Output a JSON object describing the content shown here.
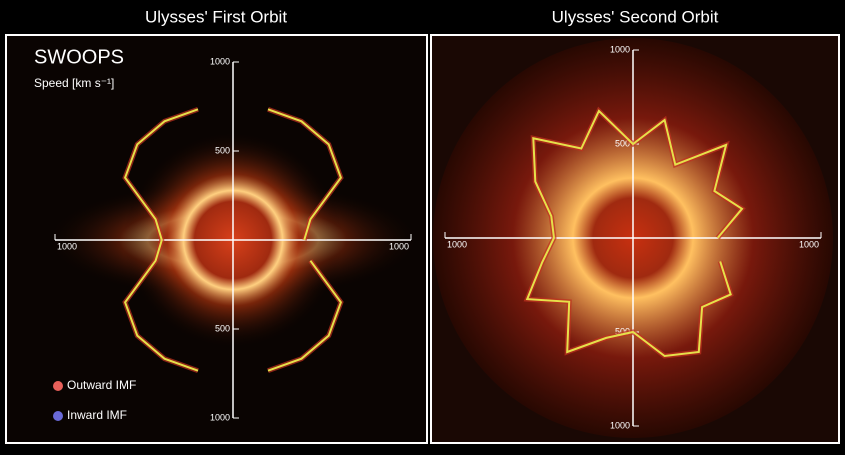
{
  "chart_data": [
    {
      "type": "polar",
      "title": "Ulysses' First Orbit",
      "annotation": "SWOOPS",
      "axis_label": "Speed [km s⁻¹]",
      "rlim": [
        0,
        1000
      ],
      "rticks": [
        500,
        1000
      ],
      "theta": [
        0,
        15,
        30,
        45,
        60,
        75,
        90,
        105,
        120,
        135,
        150,
        165,
        180,
        195,
        210,
        225,
        240,
        255,
        270,
        285,
        300,
        315,
        330,
        345
      ],
      "series": [
        {
          "color": "#e6e04a",
          "values": [
            400,
            450,
            700,
            760,
            770,
            760,
            null,
            760,
            770,
            760,
            700,
            450,
            400,
            450,
            700,
            760,
            770,
            760,
            null,
            760,
            770,
            760,
            700,
            450
          ]
        }
      ],
      "legend": [
        {
          "name": "Outward IMF",
          "color": "#e8605a"
        },
        {
          "name": "Inward IMF",
          "color": "#6a6ad8"
        }
      ]
    },
    {
      "type": "polar",
      "title": "Ulysses' Second Orbit",
      "rlim": [
        0,
        1000
      ],
      "rticks": [
        500,
        1000
      ],
      "theta": [
        0,
        15,
        30,
        45,
        60,
        75,
        90,
        105,
        120,
        135,
        150,
        165,
        180,
        195,
        210,
        225,
        240,
        255,
        270,
        285,
        300,
        315,
        330,
        345
      ],
      "series": [
        {
          "color": "#e6e04a",
          "values": [
            450,
            600,
            500,
            700,
            450,
            650,
            500,
            700,
            550,
            750,
            600,
            450,
            420,
            500,
            650,
            480,
            700,
            550,
            500,
            650,
            700,
            520,
            600,
            480
          ]
        }
      ]
    }
  ]
}
